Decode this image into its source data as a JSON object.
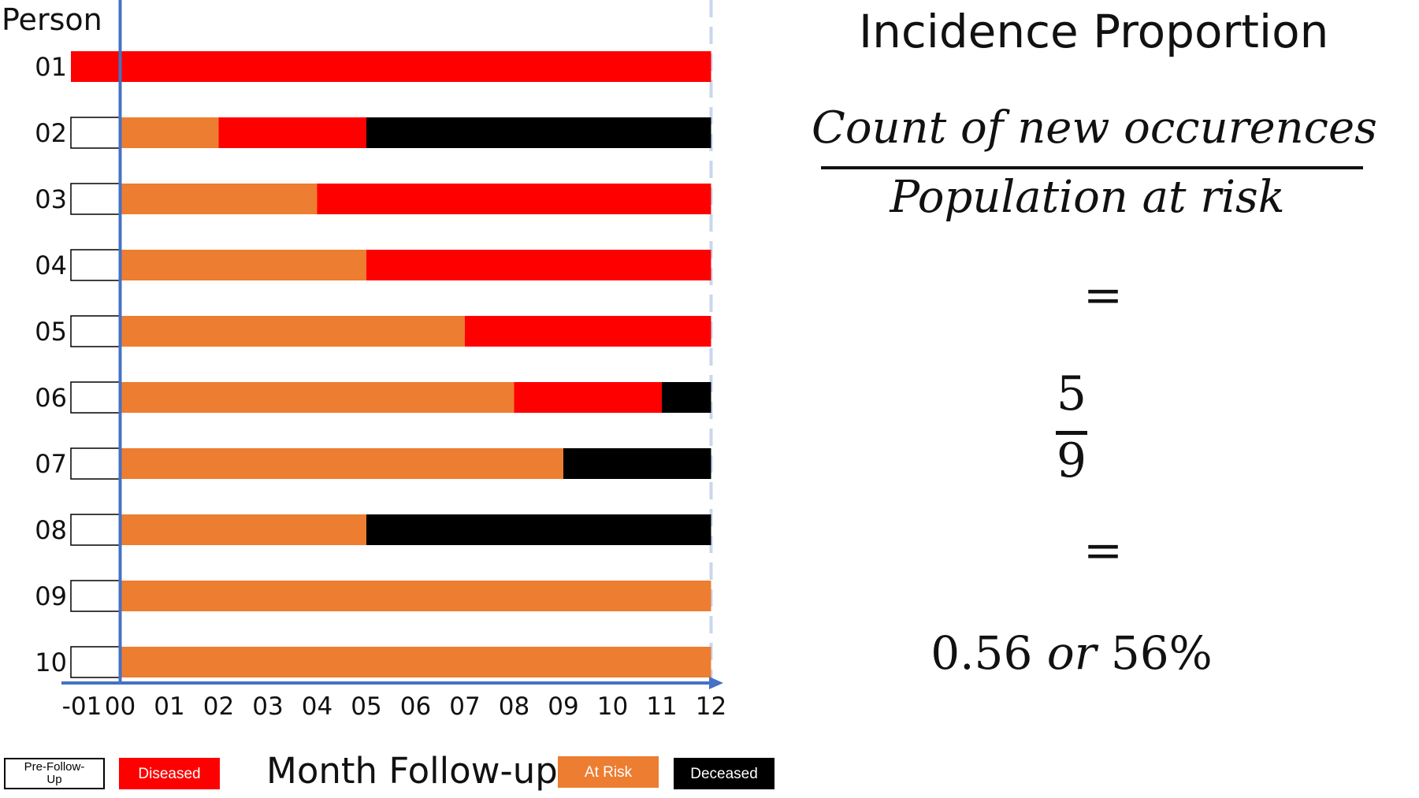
{
  "chart_data": {
    "type": "bar",
    "orientation": "horizontal-stacked",
    "ylabel": "Person",
    "xlabel": "Month Follow-up",
    "xlim": [
      -1,
      12
    ],
    "x_ticks": [
      "-01",
      "00",
      "01",
      "02",
      "03",
      "04",
      "05",
      "06",
      "07",
      "08",
      "09",
      "10",
      "11",
      "12"
    ],
    "categories": [
      "01",
      "02",
      "03",
      "04",
      "05",
      "06",
      "07",
      "08",
      "09",
      "10"
    ],
    "colors": {
      "Pre-Follow-Up": "#ffffff",
      "Diseased": "#ff0000",
      "At Risk": "#ed7d31",
      "Deceased": "#000000",
      "axis": "#4472c4"
    },
    "persons": [
      {
        "id": "01",
        "segments": [
          {
            "state": "Diseased",
            "start": -1,
            "end": 12
          }
        ]
      },
      {
        "id": "02",
        "segments": [
          {
            "state": "Pre-Follow-Up",
            "start": -1,
            "end": 0
          },
          {
            "state": "At Risk",
            "start": 0,
            "end": 2
          },
          {
            "state": "Diseased",
            "start": 2,
            "end": 5
          },
          {
            "state": "Deceased",
            "start": 5,
            "end": 12
          }
        ]
      },
      {
        "id": "03",
        "segments": [
          {
            "state": "Pre-Follow-Up",
            "start": -1,
            "end": 0
          },
          {
            "state": "At Risk",
            "start": 0,
            "end": 4
          },
          {
            "state": "Diseased",
            "start": 4,
            "end": 12
          }
        ]
      },
      {
        "id": "04",
        "segments": [
          {
            "state": "Pre-Follow-Up",
            "start": -1,
            "end": 0
          },
          {
            "state": "At Risk",
            "start": 0,
            "end": 5
          },
          {
            "state": "Diseased",
            "start": 5,
            "end": 12
          }
        ]
      },
      {
        "id": "05",
        "segments": [
          {
            "state": "Pre-Follow-Up",
            "start": -1,
            "end": 0
          },
          {
            "state": "At Risk",
            "start": 0,
            "end": 7
          },
          {
            "state": "Diseased",
            "start": 7,
            "end": 12
          }
        ]
      },
      {
        "id": "06",
        "segments": [
          {
            "state": "Pre-Follow-Up",
            "start": -1,
            "end": 0
          },
          {
            "state": "At Risk",
            "start": 0,
            "end": 8
          },
          {
            "state": "Diseased",
            "start": 8,
            "end": 11
          },
          {
            "state": "Deceased",
            "start": 11,
            "end": 12
          }
        ]
      },
      {
        "id": "07",
        "segments": [
          {
            "state": "Pre-Follow-Up",
            "start": -1,
            "end": 0
          },
          {
            "state": "At Risk",
            "start": 0,
            "end": 9
          },
          {
            "state": "Deceased",
            "start": 9,
            "end": 12
          }
        ]
      },
      {
        "id": "08",
        "segments": [
          {
            "state": "Pre-Follow-Up",
            "start": -1,
            "end": 0
          },
          {
            "state": "At Risk",
            "start": 0,
            "end": 5
          },
          {
            "state": "Deceased",
            "start": 5,
            "end": 12
          }
        ]
      },
      {
        "id": "09",
        "segments": [
          {
            "state": "Pre-Follow-Up",
            "start": -1,
            "end": 0
          },
          {
            "state": "At Risk",
            "start": 0,
            "end": 12
          }
        ]
      },
      {
        "id": "10",
        "segments": [
          {
            "state": "Pre-Follow-Up",
            "start": -1,
            "end": 0
          },
          {
            "state": "At Risk",
            "start": 0,
            "end": 12
          }
        ]
      }
    ],
    "legend": [
      {
        "label": "Pre-Follow-Up",
        "display": "Pre-Follow-\nUp",
        "fill": "#ffffff",
        "text": "#000000"
      },
      {
        "label": "Diseased",
        "display": "Diseased",
        "fill": "#ff0000",
        "text": "#ffffff"
      },
      {
        "label": "At Risk",
        "display": "At Risk",
        "fill": "#ed7d31",
        "text": "#ffffff"
      },
      {
        "label": "Deceased",
        "display": "Deceased",
        "fill": "#000000",
        "text": "#ffffff"
      }
    ]
  },
  "formula": {
    "title": "Incidence Proportion",
    "numerator": "Count of new occurences",
    "denominator": "Population at risk",
    "equals": "=",
    "value_numerator": "5",
    "value_denominator": "9",
    "result_prefix": "0.56 ",
    "result_or": "or",
    "result_suffix": " 56%"
  }
}
